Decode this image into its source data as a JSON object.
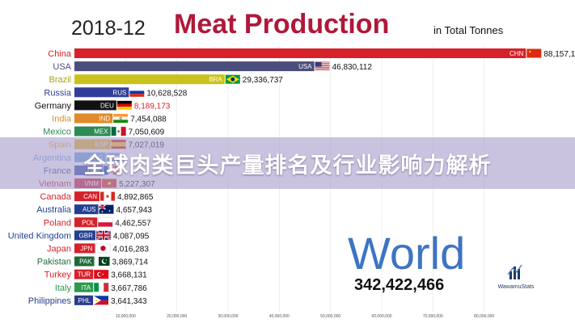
{
  "chart_data": {
    "type": "bar",
    "orientation": "horizontal",
    "date": "2018-12",
    "title": "Meat Production",
    "subtitle": "in Total Tonnes",
    "xlim": [
      0,
      90000000
    ],
    "x_ticks": [
      {
        "value": 10000000,
        "label": "10,000,000"
      },
      {
        "value": 20000000,
        "label": "20,000,000"
      },
      {
        "value": 30000000,
        "label": "30,000,000"
      },
      {
        "value": 40000000,
        "label": "40,000,000"
      },
      {
        "value": 50000000,
        "label": "50,000,000"
      },
      {
        "value": 60000000,
        "label": "60,000,000"
      },
      {
        "value": 70000000,
        "label": "70,000,000"
      },
      {
        "value": 80000000,
        "label": "80,000,000"
      }
    ],
    "bars": [
      {
        "country": "China",
        "code": "CHN",
        "value": 88157104,
        "value_label": "88,157,104",
        "color": "#d6212a",
        "label_color": "#d6212a",
        "flag": "flag-china"
      },
      {
        "country": "USA",
        "code": "USA",
        "value": 46830112,
        "value_label": "46,830,112",
        "color": "#4a4e7c",
        "label_color": "#4a4e7c",
        "flag": "flag-usa"
      },
      {
        "country": "Brazil",
        "code": "BRA",
        "value": 29336737,
        "value_label": "29,336,737",
        "color": "#c9c21c",
        "label_color": "#a8a21a",
        "flag": "flag-brazil"
      },
      {
        "country": "Russia",
        "code": "RUS",
        "value": 10628528,
        "value_label": "10,628,528",
        "color": "#2f3f9a",
        "label_color": "#2f3f9a",
        "flag": "flag-russia"
      },
      {
        "country": "Germany",
        "code": "DEU",
        "value": 8189173,
        "value_label": "8,189,173",
        "color": "#111111",
        "label_color": "#111111",
        "flag": "flag-germany"
      },
      {
        "country": "India",
        "code": "IND",
        "value": 7454088,
        "value_label": "7,454,088",
        "color": "#e08b2a",
        "label_color": "#e08b2a",
        "flag": "flag-india"
      },
      {
        "country": "Mexico",
        "code": "MEX",
        "value": 7050609,
        "value_label": "7,050,609",
        "color": "#2c8a55",
        "label_color": "#2c8a55",
        "flag": "flag-mexico"
      },
      {
        "country": "Spain",
        "code": "ESP",
        "value": 7027019,
        "value_label": "7,027,019",
        "color": "#e3b01f",
        "label_color": "#e3b01f",
        "flag": "flag-spain"
      },
      {
        "country": "Argentina",
        "code": "ARG",
        "value": 6100000,
        "value_label": "",
        "color": "#63a2d8",
        "label_color": "#63a2d8",
        "flag": "flag-argentina"
      },
      {
        "country": "France",
        "code": "FRA",
        "value": 5500000,
        "value_label": "",
        "color": "#2a4ea0",
        "label_color": "#2a4ea0",
        "flag": "flag-france"
      },
      {
        "country": "Vietnam",
        "code": "VNM",
        "value": 5227307,
        "value_label": "5,227,307",
        "color": "#c81e2a",
        "label_color": "#c81e2a",
        "flag": "flag-vietnam"
      },
      {
        "country": "Canada",
        "code": "CAN",
        "value": 4892865,
        "value_label": "4,892,865",
        "color": "#d6212a",
        "label_color": "#d6212a",
        "flag": "flag-canada"
      },
      {
        "country": "Australia",
        "code": "AUS",
        "value": 4657943,
        "value_label": "4,657,943",
        "color": "#243f8f",
        "label_color": "#243f8f",
        "flag": "flag-australia"
      },
      {
        "country": "Poland",
        "code": "POL",
        "value": 4462557,
        "value_label": "4,462,557",
        "color": "#d6212a",
        "label_color": "#d6212a",
        "flag": "flag-poland"
      },
      {
        "country": "United Kingdom",
        "code": "GBR",
        "value": 4087095,
        "value_label": "4,087,095",
        "color": "#243f8f",
        "label_color": "#243f8f",
        "flag": "flag-uk"
      },
      {
        "country": "Japan",
        "code": "JPN",
        "value": 4016283,
        "value_label": "4,016,283",
        "color": "#d6212a",
        "label_color": "#d6212a",
        "flag": "flag-japan"
      },
      {
        "country": "Pakistan",
        "code": "PAK",
        "value": 3869714,
        "value_label": "3,869,714",
        "color": "#1e6b3a",
        "label_color": "#1e6b3a",
        "flag": "flag-pakistan"
      },
      {
        "country": "Turkey",
        "code": "TUR",
        "value": 3668131,
        "value_label": "3,668,131",
        "color": "#d6212a",
        "label_color": "#d6212a",
        "flag": "flag-turkey"
      },
      {
        "country": "Italy",
        "code": "ITA",
        "value": 3667786,
        "value_label": "3,667,786",
        "color": "#2c9a4c",
        "label_color": "#2c9a4c",
        "flag": "flag-italy"
      },
      {
        "country": "Philippines",
        "code": "PHL",
        "value": 3641343,
        "value_label": "3,641,343",
        "color": "#2a3c8f",
        "label_color": "#2a3c8f",
        "flag": "flag-philippines"
      }
    ],
    "world_label": "World",
    "world_total": "342,422,466"
  },
  "overlay": {
    "headline": "全球肉类巨头产量排名及行业影响力解析"
  },
  "branding": {
    "name": "WawamuStats",
    "icon": "bar-chart-logo-icon"
  }
}
